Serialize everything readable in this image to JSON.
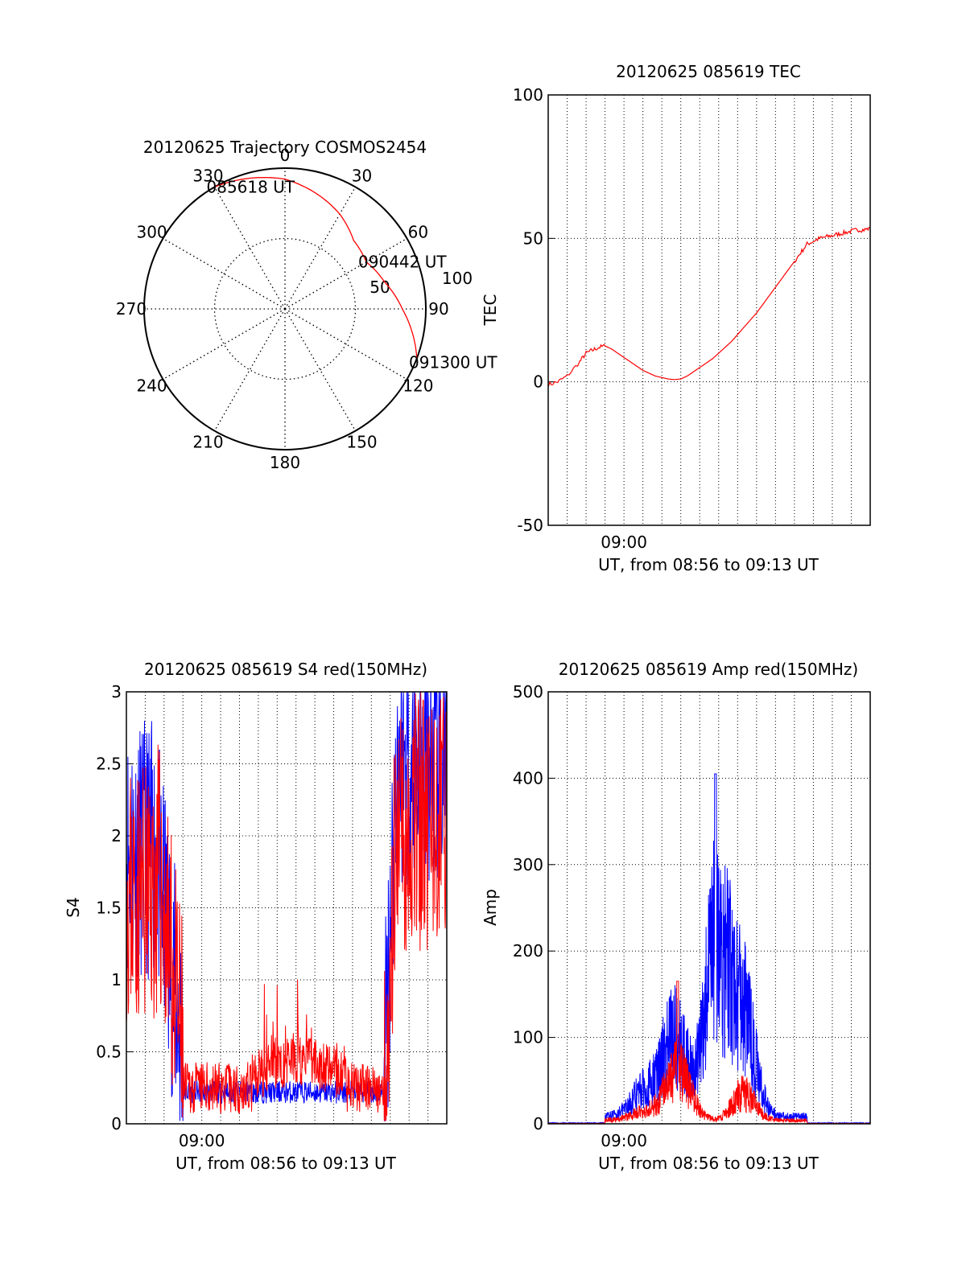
{
  "chart_data": [
    {
      "type": "polar",
      "title": "20120625 Trajectory COSMOS2454",
      "angle_labels": [
        "0",
        "30",
        "60",
        "90",
        "120",
        "150",
        "180",
        "210",
        "240",
        "270",
        "300",
        "330"
      ],
      "radial_labels": [
        "50",
        "100"
      ],
      "rmax": 100,
      "line_color": "#ff0000",
      "trajectory": [
        {
          "az": 330,
          "zen": 90
        },
        {
          "az": 0,
          "zen": 83
        },
        {
          "az": 30,
          "zen": 70
        },
        {
          "az": 45,
          "zen": 62
        },
        {
          "az": 60,
          "zen": 60
        },
        {
          "az": 75,
          "zen": 66
        },
        {
          "az": 90,
          "zen": 75
        },
        {
          "az": 105,
          "zen": 86
        },
        {
          "az": 112,
          "zen": 91
        }
      ],
      "annotations": [
        {
          "text": "085618 UT",
          "az": 330,
          "zen": 90
        },
        {
          "text": "090442 UT",
          "az": 60,
          "zen": 60
        },
        {
          "text": "091300 UT",
          "az": 112,
          "zen": 91
        }
      ]
    },
    {
      "type": "line",
      "title": "20120625 085619 TEC",
      "xlabel": "UT, from 08:56 to 09:13 UT",
      "ylabel": "TEC",
      "x_ticks": [
        {
          "label": "09:00",
          "min": 240
        }
      ],
      "xlim_min": [
        0,
        1020
      ],
      "ylim": [
        -50,
        100
      ],
      "y_ticks": [
        -50,
        0,
        50,
        100
      ],
      "series": [
        {
          "color": "#ff0000",
          "x_min": [
            0,
            30,
            60,
            100,
            120,
            140,
            160,
            180,
            200,
            220,
            240,
            260,
            280,
            300,
            320,
            340,
            360,
            380,
            400,
            420,
            440,
            460,
            480,
            500,
            520,
            540,
            560,
            580,
            600,
            620,
            640,
            660,
            680,
            700,
            720,
            740,
            760,
            780,
            800,
            820,
            840,
            860,
            880,
            900,
            920,
            940,
            960,
            980,
            1000,
            1020
          ],
          "y": [
            -1,
            0,
            2,
            7,
            10,
            11,
            12,
            12.5,
            11.5,
            10,
            8.5,
            7,
            5.5,
            4,
            3,
            2,
            1.5,
            1,
            0.8,
            1,
            2,
            3.5,
            5,
            6.5,
            8,
            10,
            12,
            14,
            16.5,
            19,
            21.5,
            24,
            27,
            30,
            33,
            36,
            39,
            42,
            45,
            48,
            49,
            50,
            50.5,
            51,
            51.5,
            52,
            52.5,
            53,
            53,
            53.5
          ]
        }
      ]
    },
    {
      "type": "line",
      "title": "20120625 085619 S4 red(150MHz)",
      "xlabel": "UT, from 08:56 to 09:13 UT",
      "ylabel": "S4",
      "x_ticks": [
        {
          "label": "09:00",
          "min": 240
        }
      ],
      "xlim_min": [
        0,
        1020
      ],
      "ylim": [
        0,
        3
      ],
      "y_ticks": [
        "0",
        "0.5",
        "1",
        "1.5",
        "2",
        "2.5",
        "3"
      ],
      "series": [
        {
          "color": "#ff0000",
          "profile": "s4-red"
        },
        {
          "color": "#0000ff",
          "profile": "s4-blue"
        }
      ]
    },
    {
      "type": "line",
      "title": "20120625 085619 Amp red(150MHz)",
      "xlabel": "UT, from 08:56 to 09:13 UT",
      "ylabel": "Amp",
      "x_ticks": [
        {
          "label": "09:00",
          "min": 240
        }
      ],
      "xlim_min": [
        0,
        1020
      ],
      "ylim": [
        0,
        500
      ],
      "y_ticks": [
        "0",
        "100",
        "200",
        "300",
        "400",
        "500"
      ],
      "series": [
        {
          "color": "#0000ff",
          "profile": "amp-blue",
          "peak": 405
        },
        {
          "color": "#ff0000",
          "profile": "amp-red",
          "peak": 165
        }
      ]
    }
  ]
}
